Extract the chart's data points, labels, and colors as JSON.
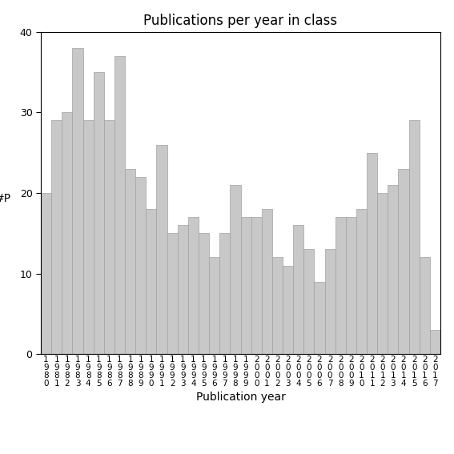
{
  "title": "Publications per year in class",
  "xlabel": "Publication year",
  "ylabel": "#P",
  "years": [
    1980,
    1981,
    1982,
    1983,
    1984,
    1985,
    1986,
    1987,
    1988,
    1989,
    1990,
    1991,
    1992,
    1993,
    1994,
    1995,
    1996,
    1997,
    1998,
    1999,
    2000,
    2001,
    2002,
    2003,
    2004,
    2005,
    2006,
    2007,
    2008,
    2009,
    2010,
    2011,
    2012,
    2013,
    2014,
    2015,
    2016,
    2017
  ],
  "values": [
    20,
    29,
    30,
    38,
    29,
    35,
    29,
    37,
    23,
    22,
    18,
    26,
    15,
    16,
    17,
    15,
    12,
    15,
    21,
    17,
    17,
    18,
    12,
    11,
    16,
    13,
    9,
    13,
    17,
    17,
    18,
    25,
    20,
    21,
    23,
    29,
    12,
    3
  ],
  "bar_color": "#c8c8c8",
  "bar_edge_color": "#a0a0a0",
  "ylim": [
    0,
    40
  ],
  "yticks": [
    0,
    10,
    20,
    30,
    40
  ],
  "background_color": "#ffffff",
  "title_fontsize": 12,
  "label_fontsize": 10,
  "tick_fontsize": 9
}
